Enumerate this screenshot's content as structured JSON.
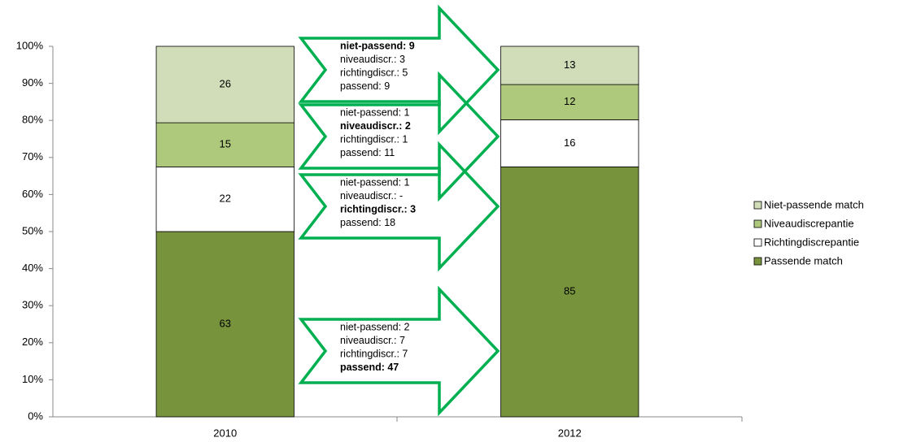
{
  "chart_data": {
    "type": "bar",
    "stacking": "percent",
    "categories": [
      "2010",
      "2012"
    ],
    "series": [
      {
        "name": "Passende match",
        "color": "#77933c",
        "values": [
          63,
          85
        ]
      },
      {
        "name": "Richtingdiscrepantie",
        "color": "#ffffff",
        "values": [
          22,
          16
        ]
      },
      {
        "name": "Niveaudiscrepantie",
        "color": "#afc97c",
        "values": [
          15,
          12
        ]
      },
      {
        "name": "Niet-passende match",
        "color": "#d0ddb8",
        "values": [
          26,
          13
        ]
      }
    ],
    "ylim": [
      0,
      100
    ],
    "yticks": [
      {
        "value": 0,
        "label": "0%"
      },
      {
        "value": 10,
        "label": "10%"
      },
      {
        "value": 20,
        "label": "20%"
      },
      {
        "value": 30,
        "label": "30%"
      },
      {
        "value": 40,
        "label": "40%"
      },
      {
        "value": 50,
        "label": "50%"
      },
      {
        "value": 60,
        "label": "60%"
      },
      {
        "value": 70,
        "label": "70%"
      },
      {
        "value": 80,
        "label": "80%"
      },
      {
        "value": 90,
        "label": "90%"
      },
      {
        "value": 100,
        "label": "100%"
      }
    ],
    "legend": "right",
    "annotations": [
      {
        "lines": [
          "niet-passend: 9",
          "niveaudiscr.: 3",
          "richtingdiscr.: 5",
          "passend: 9"
        ],
        "bold": 0
      },
      {
        "lines": [
          "niet-passend: 1",
          "niveaudiscr.: 2",
          "richtingdiscr.: 1",
          "passend: 11"
        ],
        "bold": 1
      },
      {
        "lines": [
          "niet-passend: 1",
          "niveaudiscr.: -",
          "richtingdiscr.: 3",
          "passend: 18"
        ],
        "bold": 2
      },
      {
        "lines": [
          "niet-passend: 2",
          "niveaudiscr.: 7",
          "richtingdiscr.: 7",
          "passend: 47"
        ],
        "bold": 3
      }
    ],
    "arrow_color": "#00b050"
  }
}
